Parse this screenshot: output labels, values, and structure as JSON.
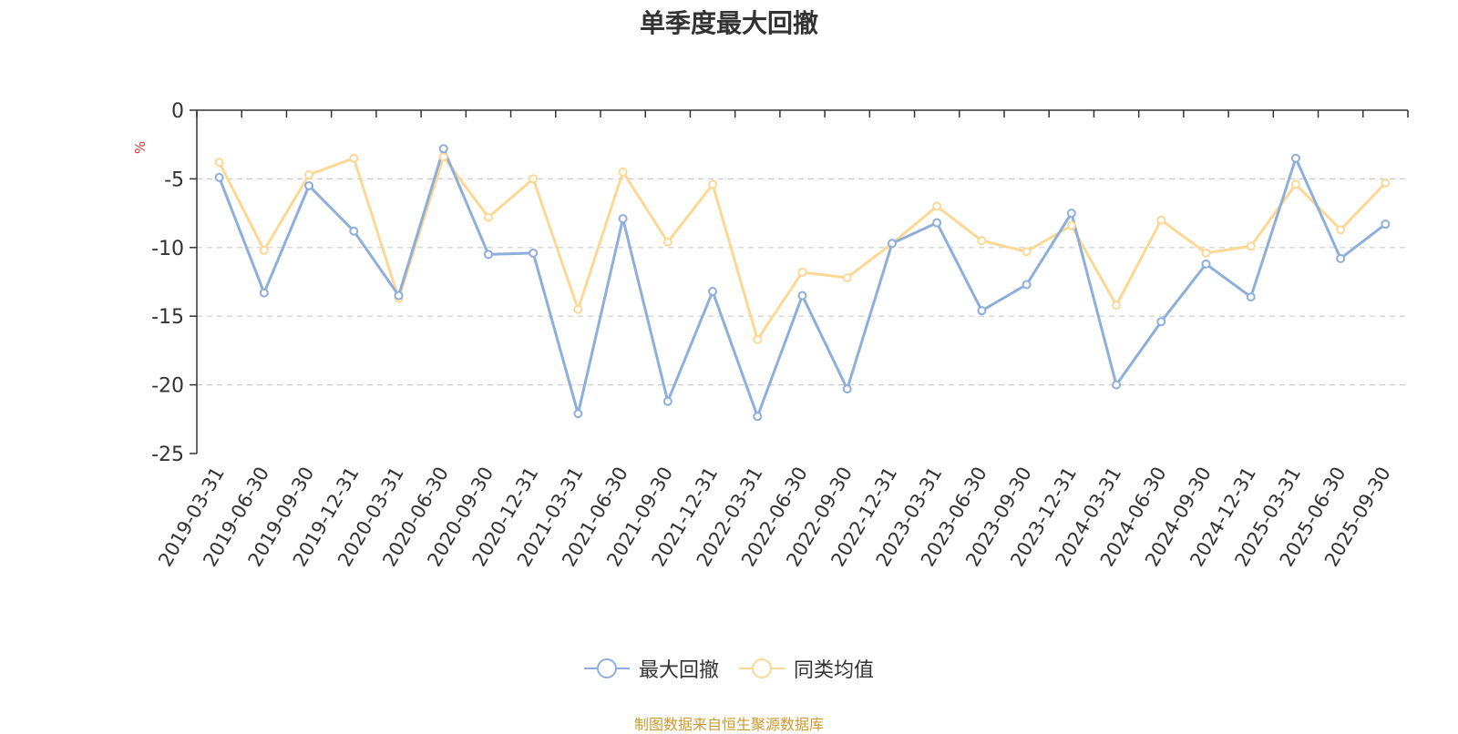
{
  "chart_data": {
    "type": "line",
    "title": "单季度最大回撤",
    "ylabel": "%",
    "ylim": [
      -25,
      0
    ],
    "yticks": [
      0,
      -5,
      -10,
      -15,
      -20,
      -25
    ],
    "grid": true,
    "legend_position": "bottom",
    "categories": [
      "2019-03-31",
      "2019-06-30",
      "2019-09-30",
      "2019-12-31",
      "2020-03-31",
      "2020-06-30",
      "2020-09-30",
      "2020-12-31",
      "2021-03-31",
      "2021-06-30",
      "2021-09-30",
      "2021-12-31",
      "2022-03-31",
      "2022-06-30",
      "2022-09-30",
      "2022-12-31",
      "2023-03-31",
      "2023-06-30",
      "2023-09-30",
      "2023-12-31",
      "2024-03-31",
      "2024-06-30",
      "2024-09-30",
      "2024-12-31",
      "2025-03-31",
      "2025-06-30",
      "2025-09-30"
    ],
    "series": [
      {
        "name": "最大回撤",
        "color": "#8eaedc",
        "values": [
          -4.9,
          -13.3,
          -5.5,
          -8.8,
          -13.5,
          -2.8,
          -10.5,
          -10.4,
          -22.1,
          -7.9,
          -21.2,
          -13.2,
          -22.3,
          -13.5,
          -20.3,
          -9.7,
          -8.2,
          -14.6,
          -12.7,
          -7.5,
          -20.0,
          -15.4,
          -11.2,
          -13.6,
          -3.5,
          -10.8,
          -8.3
        ]
      },
      {
        "name": "同类均值",
        "color": "#fdd894",
        "values": [
          -3.8,
          -10.2,
          -4.7,
          -3.5,
          -13.7,
          -3.4,
          -7.8,
          -5.0,
          -14.5,
          -4.5,
          -9.6,
          -5.4,
          -16.7,
          -11.8,
          -12.2,
          -9.7,
          -7.0,
          -9.5,
          -10.3,
          -8.4,
          -14.2,
          -8.0,
          -10.4,
          -9.9,
          -5.4,
          -8.7,
          -5.3
        ]
      }
    ]
  },
  "footer": "制图数据来自恒生聚源数据库"
}
